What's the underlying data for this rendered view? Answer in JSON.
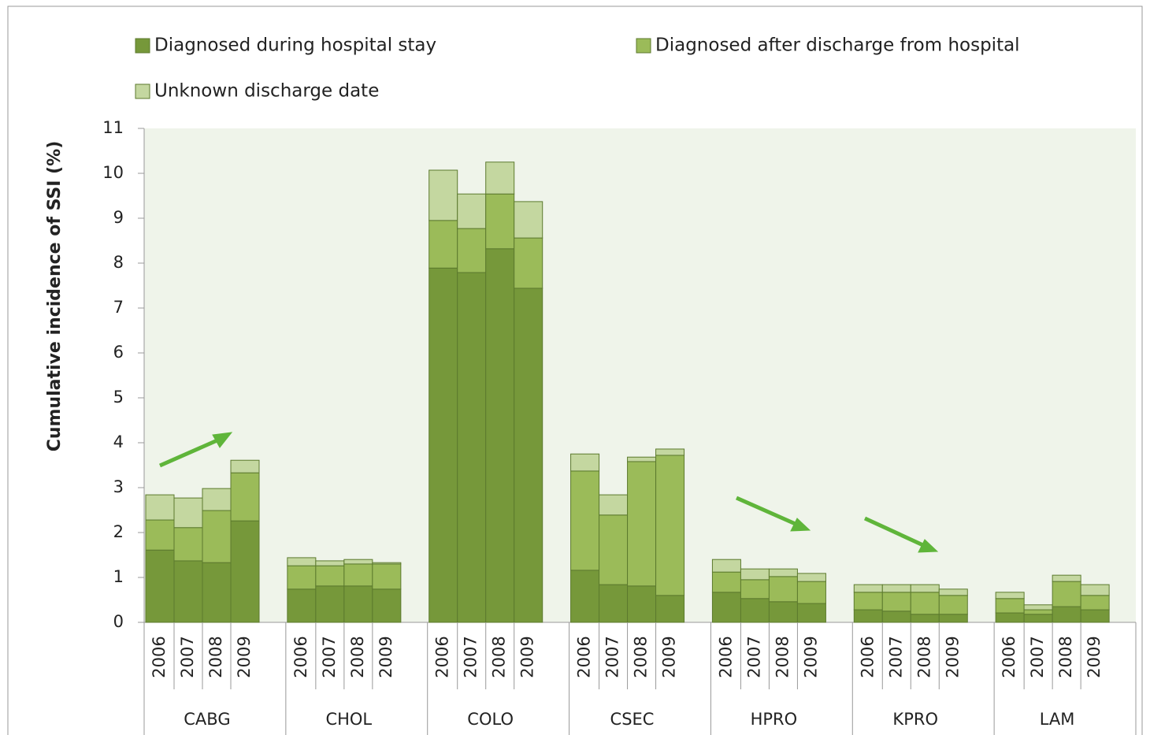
{
  "chart_data": {
    "type": "stacked_bar",
    "ylabel": "Cumulative incidence of SSI (%)",
    "groups": [
      "CABG",
      "CHOL",
      "COLO",
      "CSEC",
      "HPRO",
      "KPRO",
      "LAM"
    ],
    "categories": [
      "2006",
      "2007",
      "2008",
      "2009",
      "2006",
      "2007",
      "2008",
      "2009",
      "2006",
      "2007",
      "2008",
      "2009",
      "2006",
      "2007",
      "2008",
      "2009",
      "2006",
      "2007",
      "2008",
      "2009",
      "2006",
      "2007",
      "2008",
      "2009",
      "2006",
      "2007",
      "2008",
      "2009"
    ],
    "series": [
      {
        "name": "Diagnosed during hospital stay",
        "color": "#76983a",
        "values": [
          1.61,
          1.37,
          1.33,
          2.26,
          0.74,
          0.81,
          0.81,
          0.74,
          7.89,
          7.79,
          8.32,
          7.44,
          1.16,
          0.84,
          0.81,
          0.6,
          0.67,
          0.53,
          0.46,
          0.42,
          0.28,
          0.25,
          0.18,
          0.18,
          0.21,
          0.18,
          0.35,
          0.28
        ]
      },
      {
        "name": "Diagnosed after discharge from hospital",
        "color": "#9bbb59",
        "values": [
          0.67,
          0.74,
          1.16,
          1.07,
          0.52,
          0.45,
          0.49,
          0.56,
          1.06,
          0.98,
          1.22,
          1.12,
          2.21,
          1.55,
          2.77,
          3.12,
          0.45,
          0.42,
          0.56,
          0.49,
          0.39,
          0.42,
          0.49,
          0.42,
          0.32,
          0.1,
          0.56,
          0.32
        ]
      },
      {
        "name": "Unknown discharge date",
        "color": "#c4d7a0",
        "values": [
          0.56,
          0.66,
          0.49,
          0.28,
          0.18,
          0.11,
          0.1,
          0.03,
          1.12,
          0.77,
          0.71,
          0.81,
          0.38,
          0.45,
          0.1,
          0.14,
          0.28,
          0.24,
          0.17,
          0.18,
          0.17,
          0.17,
          0.17,
          0.14,
          0.14,
          0.11,
          0.14,
          0.24
        ]
      }
    ],
    "ylim": [
      0,
      11
    ],
    "yticks": [
      0,
      1,
      2,
      3,
      4,
      5,
      6,
      7,
      8,
      9,
      10,
      11
    ]
  }
}
